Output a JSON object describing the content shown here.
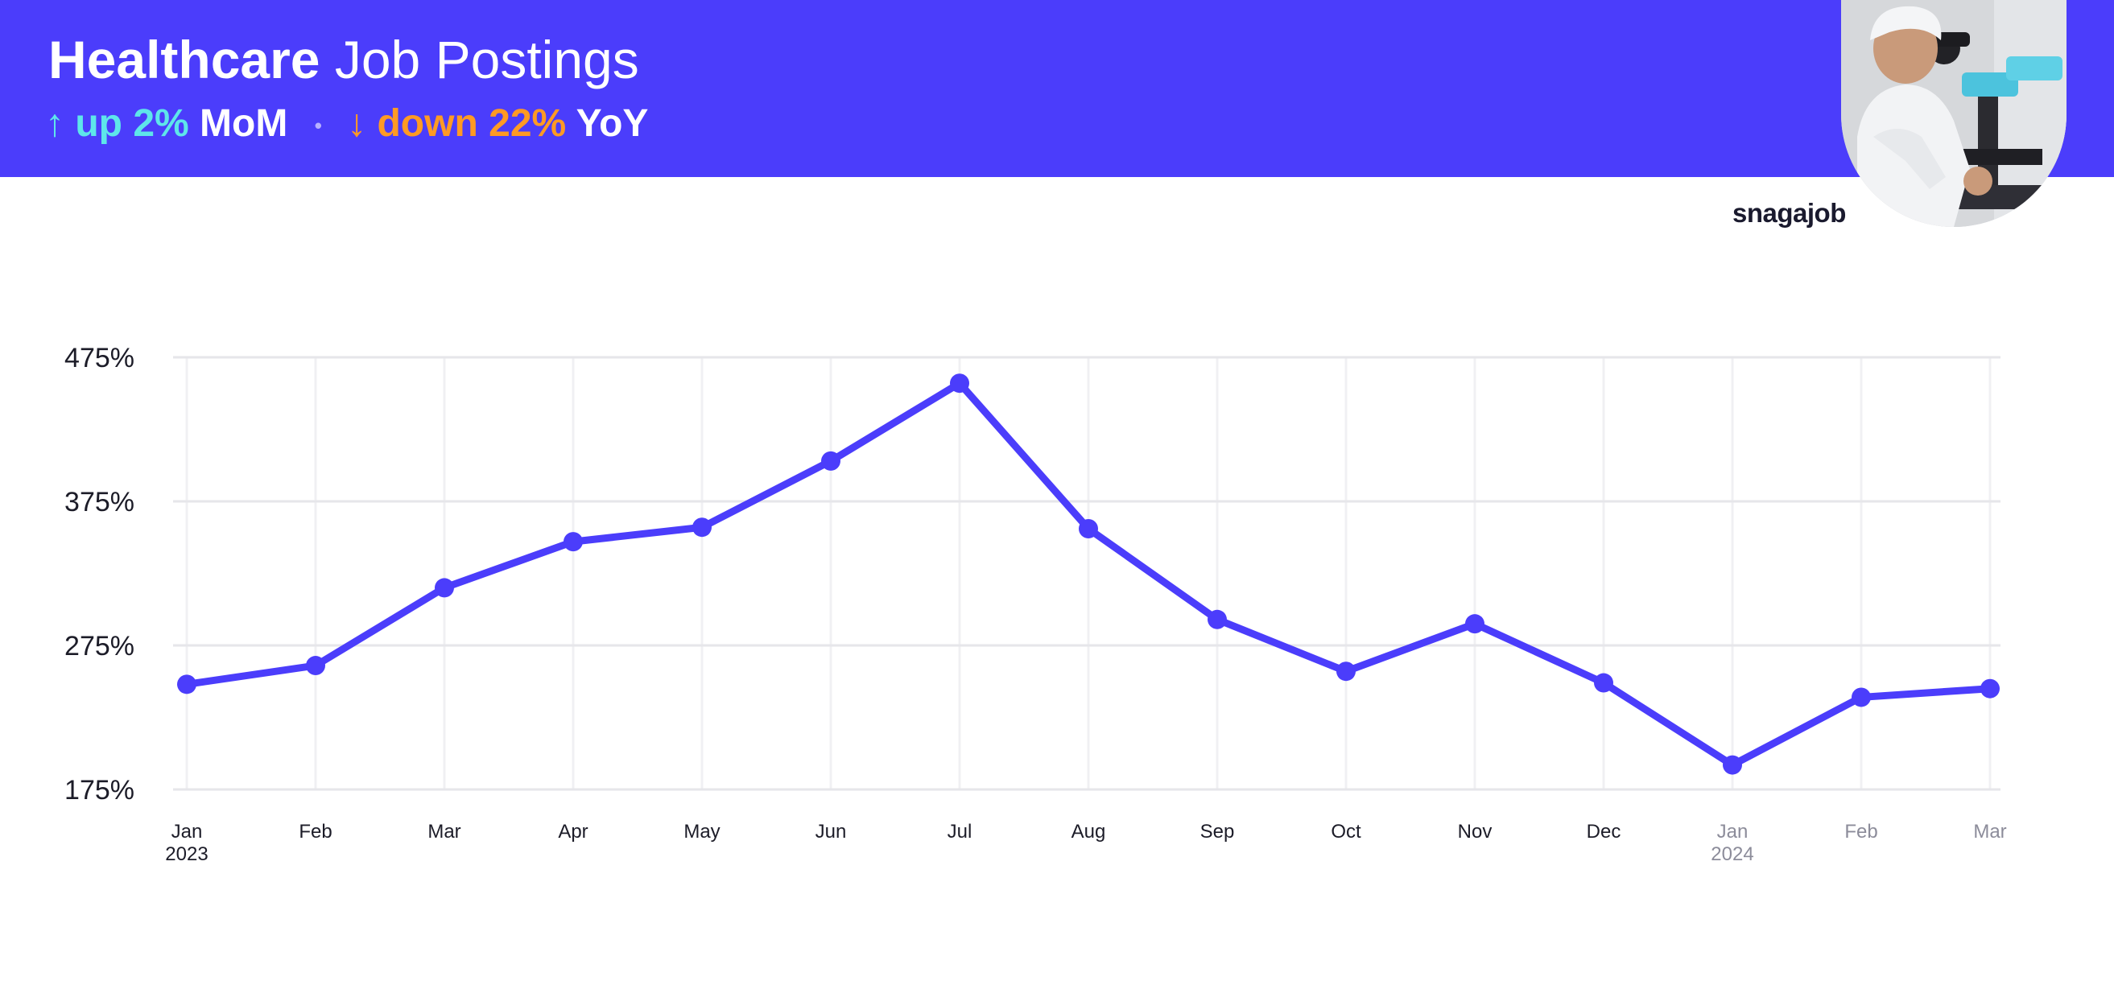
{
  "header": {
    "title_bold": "Healthcare",
    "title_rest": " Job Postings",
    "mom": {
      "arrow": "↑",
      "value": "up 2%",
      "label": "MoM"
    },
    "separator": "•",
    "yoy": {
      "arrow": "↓",
      "value": "down 22%",
      "label": "YoY"
    }
  },
  "brand": "snagajob",
  "photo_icon": "lab-technician-microscope-photo",
  "colors": {
    "accent": "#4b3dfb",
    "mom_color": "#5ee6ea",
    "yoy_color": "#ff9a24",
    "grid": "#e6e6ea"
  },
  "chart_data": {
    "type": "line",
    "title": "Healthcare Job Postings",
    "x": [
      "Jan 2023",
      "Feb 2023",
      "Mar 2023",
      "Apr 2023",
      "May 2023",
      "Jun 2023",
      "Jul 2023",
      "Aug 2023",
      "Sep 2023",
      "Oct 2023",
      "Nov 2023",
      "Dec 2023",
      "Jan 2024",
      "Feb 2024",
      "Mar 2024"
    ],
    "x_tick_labels": [
      "Jan",
      "Feb",
      "Mar",
      "Apr",
      "May",
      "Jun",
      "Jul",
      "Aug",
      "Sep",
      "Oct",
      "Nov",
      "Dec",
      "Jan",
      "Feb",
      "Mar"
    ],
    "x_tick_sublabels": [
      "2023",
      "",
      "",
      "",
      "",
      "",
      "",
      "",
      "",
      "",
      "",
      "",
      "2024",
      "",
      ""
    ],
    "series": [
      {
        "values": [
          248,
          261,
          315,
          347,
          357,
          403,
          457,
          356,
          293,
          257,
          290,
          249,
          192,
          239,
          245
        ]
      }
    ],
    "y_unit": "%",
    "yticks": [
      175,
      275,
      375,
      475
    ],
    "ylim": [
      175,
      475
    ],
    "grid": true,
    "legend": "none"
  }
}
